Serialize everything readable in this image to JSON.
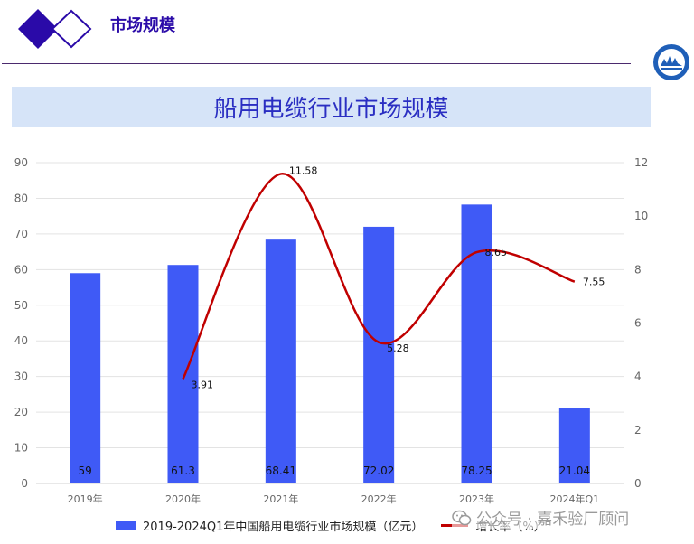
{
  "header": {
    "section_title": "市场规模"
  },
  "chart_data": {
    "type": "bar",
    "title": "船用电缆行业市场规模",
    "categories": [
      "2019年",
      "2020年",
      "2021年",
      "2022年",
      "2023年",
      "2024年Q1"
    ],
    "series": [
      {
        "name": "2019-2024Q1年中国船用电缆行业市场规模（亿元）",
        "type": "bar",
        "axis": "left",
        "values": [
          59,
          61.3,
          68.41,
          72.02,
          78.25,
          21.04
        ],
        "labels": [
          "59",
          "61.3",
          "68.41",
          "72.02",
          "78.25",
          "21.04"
        ]
      },
      {
        "name": "增长率（%）",
        "type": "line",
        "axis": "right",
        "values": [
          null,
          3.91,
          11.58,
          5.28,
          8.65,
          7.55
        ],
        "labels": [
          "",
          "3.91",
          "11.58",
          "5.28",
          "8.65",
          "7.55"
        ]
      }
    ],
    "y_left": {
      "min": 0,
      "max": 90,
      "ticks": [
        "0",
        "10",
        "20",
        "30",
        "40",
        "50",
        "60",
        "70",
        "80",
        "90"
      ]
    },
    "y_right": {
      "min": 0,
      "max": 12,
      "ticks": [
        "0",
        "2",
        "4",
        "6",
        "8",
        "10",
        "12"
      ]
    },
    "grid": true,
    "legend_position": "bottom",
    "colors": {
      "bar": "#3f5af6",
      "line": "#c00000"
    }
  },
  "watermark": {
    "text": "公众号 · 嘉禾验厂顾问",
    "icon": "wechat-icon"
  }
}
